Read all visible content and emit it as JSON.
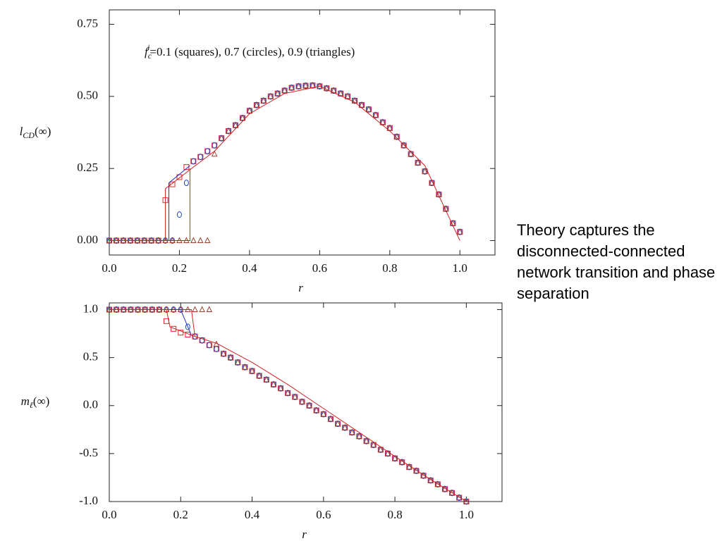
{
  "chart_data": [
    {
      "type": "scatter",
      "annotation": {
        "base": "f",
        "sub": "c",
        "sup": "i",
        "text": "=0.1 (squares), 0.7 (circles), 0.9 (triangles)"
      },
      "ylabel": {
        "base": "l",
        "sub": "CD",
        "text": "(∞)"
      },
      "xlabel": "r",
      "xlim": [
        0,
        1.1
      ],
      "ylim": [
        -0.05,
        0.8
      ],
      "xticks": [
        {
          "value": 0,
          "label": "0.0"
        },
        {
          "value": 0.2,
          "label": "0.2"
        },
        {
          "value": 0.4,
          "label": "0.4"
        },
        {
          "value": 0.6,
          "label": "0.6"
        },
        {
          "value": 0.8,
          "label": "0.8"
        },
        {
          "value": 1,
          "label": "1.0"
        }
      ],
      "yticks": [
        {
          "value": 0,
          "label": "0.00"
        },
        {
          "value": 0.25,
          "label": "0.25"
        },
        {
          "value": 0.5,
          "label": "0.50"
        },
        {
          "value": 0.75,
          "label": "0.75"
        }
      ],
      "x": [
        0,
        0.02,
        0.04,
        0.06,
        0.08,
        0.1,
        0.12,
        0.14,
        0.16,
        0.18,
        0.2,
        0.22,
        0.24,
        0.26,
        0.28,
        0.3,
        0.32,
        0.34,
        0.36,
        0.38,
        0.4,
        0.42,
        0.44,
        0.46,
        0.48,
        0.5,
        0.52,
        0.54,
        0.56,
        0.58,
        0.6,
        0.62,
        0.64,
        0.66,
        0.68,
        0.7,
        0.72,
        0.74,
        0.76,
        0.78,
        0.8,
        0.82,
        0.84,
        0.86,
        0.88,
        0.9,
        0.92,
        0.94,
        0.96,
        0.98,
        1
      ],
      "series": [
        {
          "marker": "square",
          "color": "#e8202a",
          "values": [
            0,
            0,
            0,
            0,
            0,
            0,
            0,
            0,
            0.14,
            0.195,
            0.22,
            0.255,
            0.275,
            0.29,
            0.31,
            0.33,
            0.355,
            0.38,
            0.4,
            0.425,
            0.45,
            0.47,
            0.485,
            0.5,
            0.51,
            0.52,
            0.53,
            0.535,
            0.537,
            0.538,
            0.535,
            0.528,
            0.52,
            0.51,
            0.5,
            0.485,
            0.47,
            0.455,
            0.435,
            0.41,
            0.39,
            0.36,
            0.33,
            0.3,
            0.27,
            0.24,
            0.2,
            0.16,
            0.11,
            0.06,
            0.03
          ]
        },
        {
          "marker": "circle",
          "color": "#2040c0",
          "values": [
            0,
            0,
            0,
            0,
            0,
            0,
            0,
            0,
            0,
            0,
            0.09,
            0.2,
            0.275,
            0.29,
            0.31,
            0.33,
            0.355,
            0.38,
            0.4,
            0.425,
            0.45,
            0.47,
            0.485,
            0.5,
            0.51,
            0.52,
            0.53,
            0.535,
            0.537,
            0.538,
            0.535,
            0.528,
            0.52,
            0.51,
            0.5,
            0.485,
            0.47,
            0.455,
            0.435,
            0.41,
            0.39,
            0.36,
            0.33,
            0.3,
            0.27,
            0.24,
            0.2,
            0.16,
            0.11,
            0.06,
            0.03
          ]
        },
        {
          "marker": "triangle",
          "color": "#a04030",
          "values": [
            0,
            0,
            0,
            0,
            0,
            0,
            0,
            0,
            0,
            0,
            0,
            0,
            0,
            0,
            0,
            0.3,
            0.355,
            0.38,
            0.4,
            0.425,
            0.45,
            0.47,
            0.485,
            0.5,
            0.51,
            0.52,
            0.53,
            0.535,
            0.537,
            0.538,
            0.535,
            0.528,
            0.52,
            0.51,
            0.5,
            0.485,
            0.47,
            0.455,
            0.435,
            0.41,
            0.39,
            0.36,
            0.33,
            0.3,
            0.27,
            0.24,
            0.2,
            0.16,
            0.11,
            0.06,
            0.03
          ]
        },
        {
          "style": "line",
          "color": "#d02020",
          "x": [
            0,
            0.16,
            0.16,
            0.24,
            0.3,
            0.4,
            0.5,
            0.6,
            0.7,
            0.8,
            0.9,
            1
          ],
          "values": [
            0,
            0,
            0.18,
            0.255,
            0.31,
            0.44,
            0.51,
            0.535,
            0.48,
            0.38,
            0.26,
            0
          ]
        },
        {
          "style": "line",
          "color": "#d02020",
          "x": [
            0.16,
            0.23,
            0.23
          ],
          "values": [
            0,
            0,
            0.25
          ]
        },
        {
          "style": "line",
          "color": "#2030c0",
          "x": [
            0.17,
            0.17,
            0.23
          ],
          "values": [
            0,
            0.2,
            0.26
          ]
        }
      ]
    },
    {
      "type": "scatter",
      "ylabel": {
        "base": "m",
        "sub": "ℓ",
        "text": "(∞)"
      },
      "xlabel": "r",
      "xlim": [
        0,
        1.1
      ],
      "ylim": [
        -1,
        1.07
      ],
      "xticks": [
        {
          "value": 0,
          "label": "0.0"
        },
        {
          "value": 0.2,
          "label": "0.2"
        },
        {
          "value": 0.4,
          "label": "0.4"
        },
        {
          "value": 0.6,
          "label": "0.6"
        },
        {
          "value": 0.8,
          "label": "0.8"
        },
        {
          "value": 1,
          "label": "1.0"
        }
      ],
      "yticks": [
        {
          "value": -1,
          "label": "-1.0"
        },
        {
          "value": -0.5,
          "label": "-0.5"
        },
        {
          "value": 0,
          "label": "0.0"
        },
        {
          "value": 0.5,
          "label": "0.5"
        },
        {
          "value": 1,
          "label": "1.0"
        }
      ],
      "x": [
        0,
        0.02,
        0.04,
        0.06,
        0.08,
        0.1,
        0.12,
        0.14,
        0.16,
        0.18,
        0.2,
        0.22,
        0.24,
        0.26,
        0.28,
        0.3,
        0.32,
        0.34,
        0.36,
        0.38,
        0.4,
        0.42,
        0.44,
        0.46,
        0.48,
        0.5,
        0.52,
        0.54,
        0.56,
        0.58,
        0.6,
        0.62,
        0.64,
        0.66,
        0.68,
        0.7,
        0.72,
        0.74,
        0.76,
        0.78,
        0.8,
        0.82,
        0.84,
        0.86,
        0.88,
        0.9,
        0.92,
        0.94,
        0.96,
        0.98,
        1
      ],
      "series": [
        {
          "marker": "square",
          "color": "#e8202a",
          "values": [
            1,
            1,
            1,
            1,
            1,
            1,
            1,
            1,
            0.88,
            0.8,
            0.76,
            0.74,
            0.72,
            0.68,
            0.63,
            0.59,
            0.54,
            0.5,
            0.45,
            0.4,
            0.36,
            0.31,
            0.27,
            0.22,
            0.18,
            0.13,
            0.09,
            0.04,
            0,
            -0.05,
            -0.09,
            -0.14,
            -0.19,
            -0.23,
            -0.28,
            -0.32,
            -0.37,
            -0.41,
            -0.46,
            -0.5,
            -0.55,
            -0.59,
            -0.64,
            -0.68,
            -0.73,
            -0.78,
            -0.82,
            -0.87,
            -0.91,
            -0.96,
            -1
          ]
        },
        {
          "marker": "circle",
          "color": "#2040c0",
          "values": [
            1,
            1,
            1,
            1,
            1,
            1,
            1,
            1,
            1,
            1,
            1,
            0.82,
            0.72,
            0.68,
            0.63,
            0.59,
            0.54,
            0.5,
            0.45,
            0.4,
            0.36,
            0.31,
            0.27,
            0.22,
            0.18,
            0.13,
            0.09,
            0.04,
            0,
            -0.05,
            -0.09,
            -0.14,
            -0.19,
            -0.23,
            -0.28,
            -0.32,
            -0.37,
            -0.41,
            -0.46,
            -0.5,
            -0.55,
            -0.59,
            -0.64,
            -0.68,
            -0.73,
            -0.78,
            -0.82,
            -0.87,
            -0.91,
            -0.96,
            -1
          ]
        },
        {
          "marker": "triangle",
          "color": "#a04030",
          "values": [
            1,
            1,
            1,
            1,
            1,
            1,
            1,
            1,
            1,
            1,
            1,
            1,
            1,
            1,
            1,
            0.64,
            0.54,
            0.5,
            0.45,
            0.4,
            0.36,
            0.31,
            0.27,
            0.22,
            0.18,
            0.13,
            0.09,
            0.04,
            0,
            -0.05,
            -0.09,
            -0.14,
            -0.19,
            -0.23,
            -0.28,
            -0.32,
            -0.37,
            -0.41,
            -0.46,
            -0.5,
            -0.55,
            -0.59,
            -0.64,
            -0.68,
            -0.73,
            -0.78,
            -0.82,
            -0.87,
            -0.91,
            -0.96,
            -1
          ]
        },
        {
          "style": "line",
          "color": "#d02020",
          "x": [
            0,
            0.16,
            0.17,
            0.24,
            0.3,
            0.4,
            0.5,
            0.6,
            0.7,
            0.8,
            0.9,
            1
          ],
          "values": [
            1,
            1,
            0.82,
            0.72,
            0.65,
            0.45,
            0.22,
            -0.03,
            -0.28,
            -0.53,
            -0.77,
            -1
          ]
        },
        {
          "style": "line",
          "color": "#d02020",
          "x": [
            0.15,
            0.23,
            0.24
          ],
          "values": [
            1,
            1,
            0.72
          ]
        },
        {
          "style": "line",
          "color": "#2030c0",
          "x": [
            0.17,
            0.2,
            0.23
          ],
          "values": [
            1,
            1,
            0.73
          ]
        }
      ]
    }
  ],
  "side_text": "Theory captures the disconnected-connected network transition and phase separation"
}
